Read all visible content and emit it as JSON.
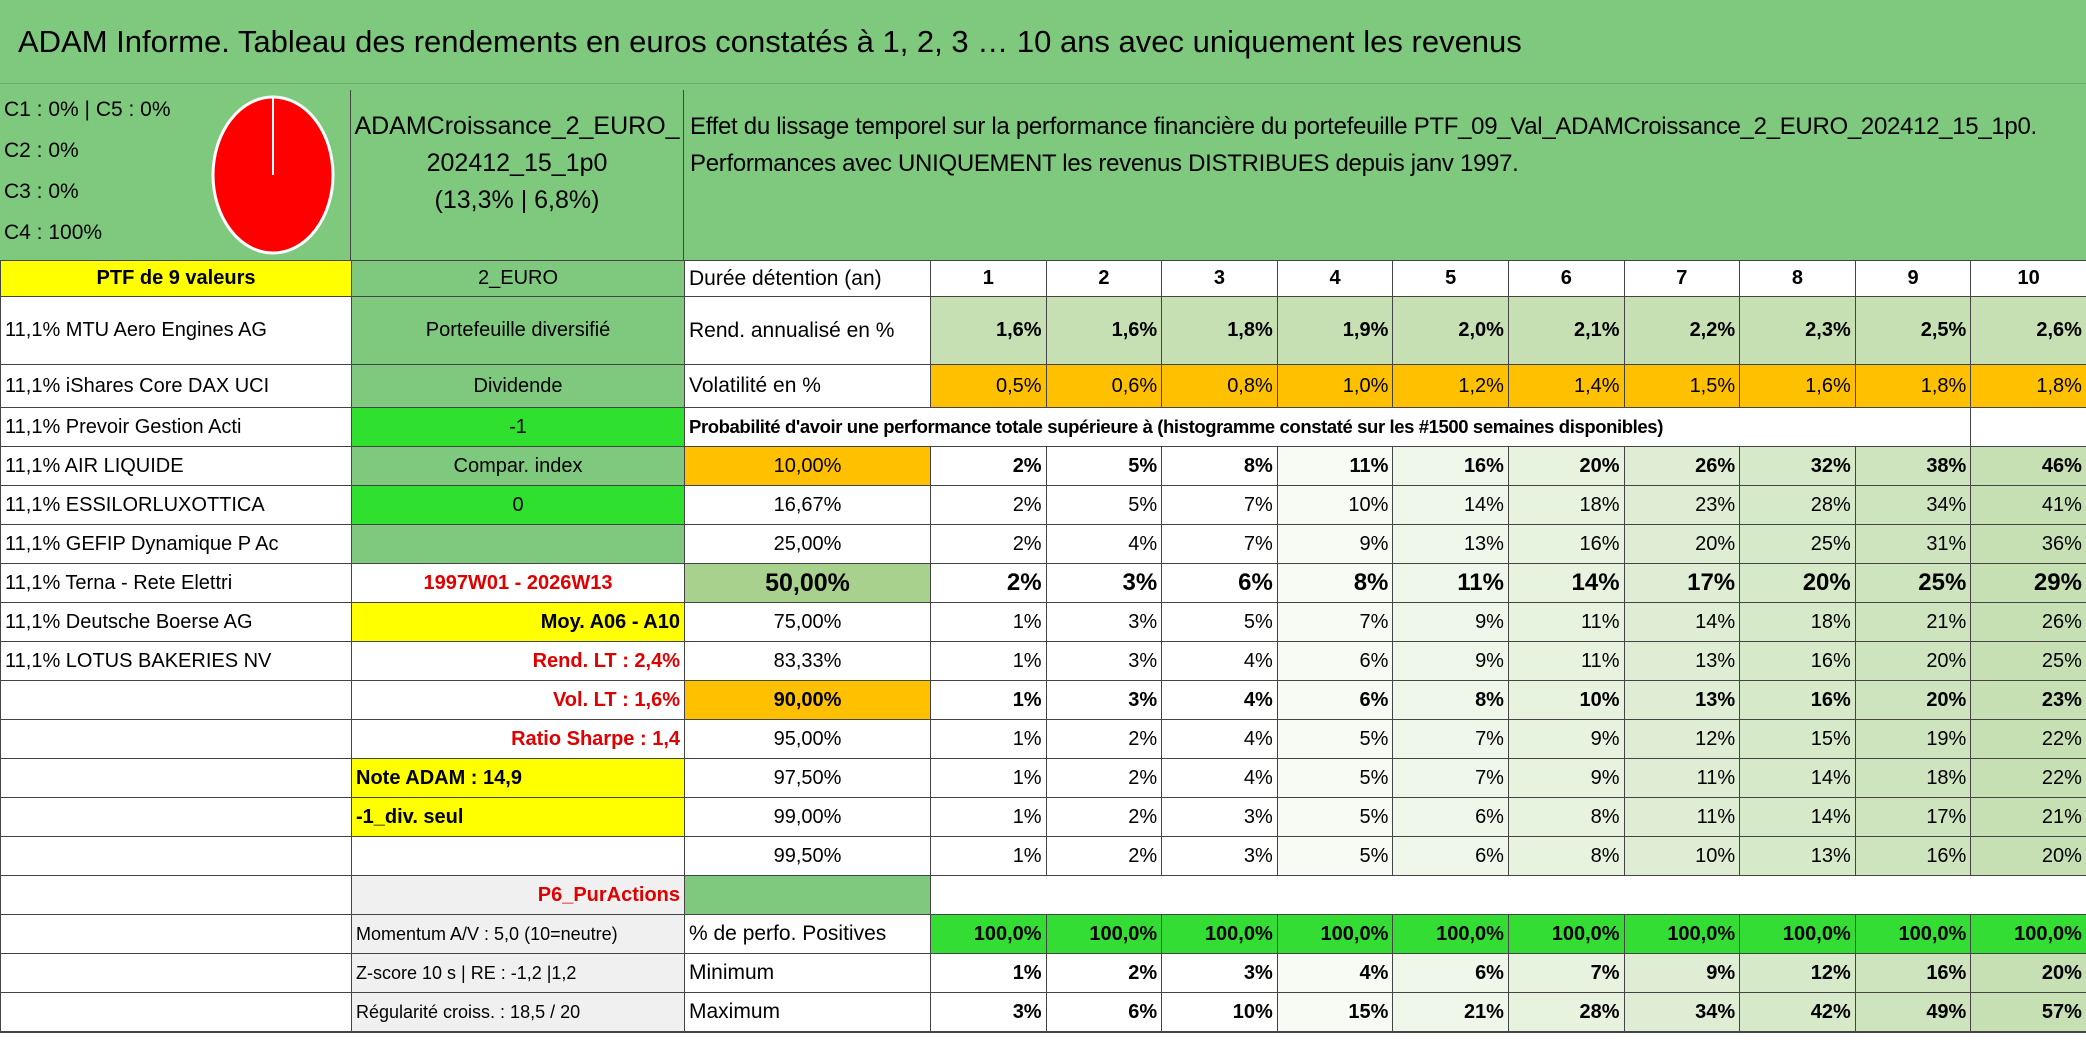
{
  "header": {
    "title": "ADAM Informe. Tableau des rendements en euros constatés à 1, 2, 3 … 10 ans avec uniquement les revenus"
  },
  "panel": {
    "allocation": [
      "C1 : 0% | C5 : 0%",
      "C2 : 0%",
      "C3 : 0%",
      "C4 : 100%"
    ],
    "fund": "ADAMCroissance_2_EURO_202412_15_1p0",
    "fund_stats": "(13,3% | 6,8%)",
    "description": "Effet du lissage temporel sur la performance financière du portefeuille PTF_09_Val_ADAMCroissance_2_EURO_202412_15_1p0. Performances avec UNIQUEMENT les revenus DISTRIBUES depuis janv 1997."
  },
  "table": {
    "rows": [
      {
        "label": "PTF de 9 valeurs",
        "side": "2_EURO",
        "metric": "Durée détention (an)",
        "values": [
          1,
          2,
          3,
          4,
          5,
          6,
          7,
          8,
          9,
          10
        ]
      },
      {
        "label": "11,1% MTU Aero Engines AG",
        "side": "Portefeuille diversifié",
        "metric": "Rend. annualisé en %",
        "values": [
          "1,6%",
          "1,6%",
          "1,8%",
          "1,9%",
          "2,0%",
          "2,1%",
          "2,2%",
          "2,3%",
          "2,5%",
          "2,6%"
        ]
      },
      {
        "label": "11,1% iShares Core DAX UCI",
        "side": "Dividende",
        "metric": "Volatilité en %",
        "values": [
          "0,5%",
          "0,6%",
          "0,8%",
          "1,0%",
          "1,2%",
          "1,4%",
          "1,5%",
          "1,6%",
          "1,8%",
          "1,8%"
        ]
      },
      {
        "label": "11,1% Prevoir Gestion Acti",
        "side": "-1",
        "note": "Probabilité d'avoir une performance totale supérieure à (histogramme constaté sur les #1500 semaines disponibles)"
      },
      {
        "label": "11,1% AIR LIQUIDE",
        "side": "Compar. index",
        "metric": "10,00%",
        "values": [
          "2%",
          "5%",
          "8%",
          "11%",
          "16%",
          "20%",
          "26%",
          "32%",
          "38%",
          "46%"
        ]
      },
      {
        "label": "11,1% ESSILORLUXOTTICA",
        "side": "0",
        "metric": "16,67%",
        "values": [
          "2%",
          "5%",
          "7%",
          "10%",
          "14%",
          "18%",
          "23%",
          "28%",
          "34%",
          "41%"
        ]
      },
      {
        "label": "11,1% GEFIP Dynamique P Ac",
        "metric": "25,00%",
        "values": [
          "2%",
          "4%",
          "7%",
          "9%",
          "13%",
          "16%",
          "20%",
          "25%",
          "31%",
          "36%"
        ]
      },
      {
        "label": "11,1% Terna - Rete Elettri",
        "side": "1997W01 - 2026W13",
        "metric": "50,00%",
        "values": [
          "2%",
          "3%",
          "6%",
          "8%",
          "11%",
          "14%",
          "17%",
          "20%",
          "25%",
          "29%"
        ]
      },
      {
        "label": "11,1% Deutsche Boerse AG",
        "side": "Moy. A06 - A10",
        "metric": "75,00%",
        "values": [
          "1%",
          "3%",
          "5%",
          "7%",
          "9%",
          "11%",
          "14%",
          "18%",
          "21%",
          "26%"
        ]
      },
      {
        "label": "11,1% LOTUS BAKERIES NV",
        "side": "Rend. LT : 2,4%",
        "metric": "83,33%",
        "values": [
          "1%",
          "3%",
          "4%",
          "6%",
          "9%",
          "11%",
          "13%",
          "16%",
          "20%",
          "25%"
        ]
      },
      {
        "side": "Vol. LT : 1,6%",
        "metric": "90,00%",
        "values": [
          "1%",
          "3%",
          "4%",
          "6%",
          "8%",
          "10%",
          "13%",
          "16%",
          "20%",
          "23%"
        ]
      },
      {
        "side": "Ratio Sharpe : 1,4",
        "metric": "95,00%",
        "values": [
          "1%",
          "2%",
          "4%",
          "5%",
          "7%",
          "9%",
          "12%",
          "15%",
          "19%",
          "22%"
        ]
      },
      {
        "side": "Note ADAM : 14,9",
        "metric": "97,50%",
        "values": [
          "1%",
          "2%",
          "4%",
          "5%",
          "7%",
          "9%",
          "11%",
          "14%",
          "18%",
          "22%"
        ]
      },
      {
        "side": "-1_div. seul",
        "metric": "99,00%",
        "values": [
          "1%",
          "2%",
          "3%",
          "5%",
          "6%",
          "8%",
          "11%",
          "14%",
          "17%",
          "21%"
        ]
      },
      {
        "metric": "99,50%",
        "values": [
          "1%",
          "2%",
          "3%",
          "5%",
          "6%",
          "8%",
          "10%",
          "13%",
          "16%",
          "20%"
        ]
      },
      {
        "side": "P6_PurActions"
      },
      {
        "side": "Momentum A/V : 5,0 (10=neutre)",
        "metric": "% de perfo. Positives",
        "values": [
          "100,0%",
          "100,0%",
          "100,0%",
          "100,0%",
          "100,0%",
          "100,0%",
          "100,0%",
          "100,0%",
          "100,0%",
          "100,0%"
        ]
      },
      {
        "side": "Z-score 10 s | RE : -1,2 |1,2",
        "metric": "Minimum",
        "values": [
          "1%",
          "2%",
          "3%",
          "4%",
          "6%",
          "7%",
          "9%",
          "12%",
          "16%",
          "20%"
        ]
      },
      {
        "side": "Régularité croiss. : 18,5 / 20",
        "metric": "Maximum",
        "values": [
          "3%",
          "6%",
          "10%",
          "15%",
          "21%",
          "28%",
          "34%",
          "42%",
          "49%",
          "57%"
        ]
      }
    ]
  }
}
